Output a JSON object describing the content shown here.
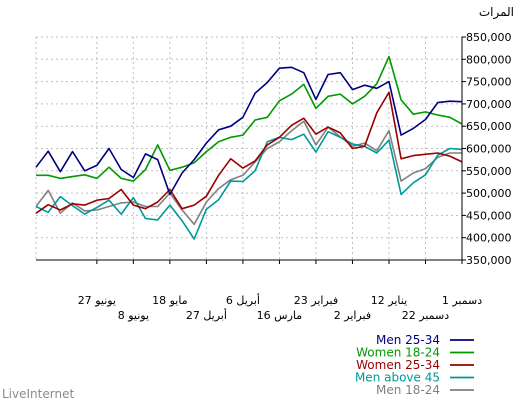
{
  "y_unit_label": "المرات",
  "watermark": "LiveInternet",
  "colors": {
    "background": "#ffffff",
    "grid": "#bfbfbf",
    "axis": "#000000"
  },
  "chart_data": {
    "type": "line",
    "title": "",
    "xlabel": "",
    "ylabel": "المرات",
    "ylim": [
      350000,
      850000
    ],
    "yticks": [
      350000,
      400000,
      450000,
      500000,
      550000,
      600000,
      650000,
      700000,
      750000,
      800000,
      850000
    ],
    "ytick_labels": [
      "350,000",
      "400,000",
      "450,000",
      "500,000",
      "550,000",
      "600,000",
      "650,000",
      "700,000",
      "750,000",
      "800,000",
      "850,000"
    ],
    "x_direction": "right-to-left",
    "num_points": 36,
    "x_tick_labels": [
      {
        "index": 0,
        "label": "1 دسمبر",
        "row": 1
      },
      {
        "index": 3,
        "label": "22 دسمبر",
        "row": 2
      },
      {
        "index": 6,
        "label": "12 ینایر",
        "row": 1
      },
      {
        "index": 9,
        "label": "2 فبرایر",
        "row": 2
      },
      {
        "index": 12,
        "label": "23 فبرایر",
        "row": 1
      },
      {
        "index": 15,
        "label": "16 مارس",
        "row": 2
      },
      {
        "index": 18,
        "label": "6 أبریل",
        "row": 1
      },
      {
        "index": 21,
        "label": "27 أبریل",
        "row": 2
      },
      {
        "index": 24,
        "label": "18 مایو",
        "row": 1
      },
      {
        "index": 27,
        "label": "8 یونیو",
        "row": 2
      },
      {
        "index": 30,
        "label": "27 یونیو",
        "row": 1
      }
    ],
    "series": [
      {
        "name": "Men 25-34",
        "color": "#00007f",
        "values": [
          705000,
          706000,
          703000,
          665000,
          645000,
          630000,
          750000,
          735000,
          742000,
          732000,
          770000,
          766000,
          710000,
          770000,
          782000,
          780000,
          748000,
          724000,
          670000,
          650000,
          642000,
          612000,
          575000,
          545000,
          497000,
          575000,
          588000,
          535000,
          553000,
          600000,
          562000,
          550000,
          593000,
          548000,
          594000,
          558000
        ]
      },
      {
        "name": "Women 18-24",
        "color": "#009900",
        "values": [
          655000,
          670000,
          675000,
          682000,
          677000,
          709000,
          806000,
          745000,
          717000,
          700000,
          722000,
          717000,
          690000,
          744000,
          722000,
          707000,
          670000,
          664000,
          630000,
          625000,
          615000,
          593000,
          568000,
          558000,
          551000,
          608000,
          553000,
          527000,
          533000,
          558000,
          533000,
          541000,
          537000,
          533000,
          540000,
          540000
        ]
      },
      {
        "name": "Women 25-34",
        "color": "#990000",
        "values": [
          570000,
          583000,
          590000,
          587000,
          584000,
          577000,
          726000,
          680000,
          605000,
          600000,
          635000,
          648000,
          632000,
          668000,
          652000,
          625000,
          608000,
          572000,
          556000,
          577000,
          540000,
          493000,
          473000,
          465000,
          508000,
          480000,
          465000,
          473000,
          508000,
          488000,
          484000,
          473000,
          476000,
          462000,
          474000,
          455000
        ]
      },
      {
        "name": "Men above 45",
        "color": "#009999",
        "values": [
          598000,
          600000,
          585000,
          541000,
          523000,
          497000,
          619000,
          590000,
          605000,
          610000,
          625000,
          638000,
          592000,
          632000,
          620000,
          625000,
          615000,
          550000,
          526000,
          527000,
          485000,
          464000,
          397000,
          438000,
          473000,
          440000,
          443000,
          490000,
          453000,
          484000,
          468000,
          453000,
          472000,
          492000,
          457000,
          470000
        ]
      },
      {
        "name": "Men 18-24",
        "color": "#808080",
        "values": [
          590000,
          590000,
          580000,
          555000,
          545000,
          527000,
          640000,
          595000,
          612000,
          605000,
          626000,
          648000,
          608000,
          661000,
          640000,
          615000,
          600000,
          570000,
          540000,
          530000,
          510000,
          480000,
          430000,
          462000,
          500000,
          470000,
          470000,
          480000,
          478000,
          470000,
          462000,
          460000,
          478000,
          455000,
          506000,
          470000
        ]
      }
    ],
    "legend_position": "bottom-right"
  }
}
